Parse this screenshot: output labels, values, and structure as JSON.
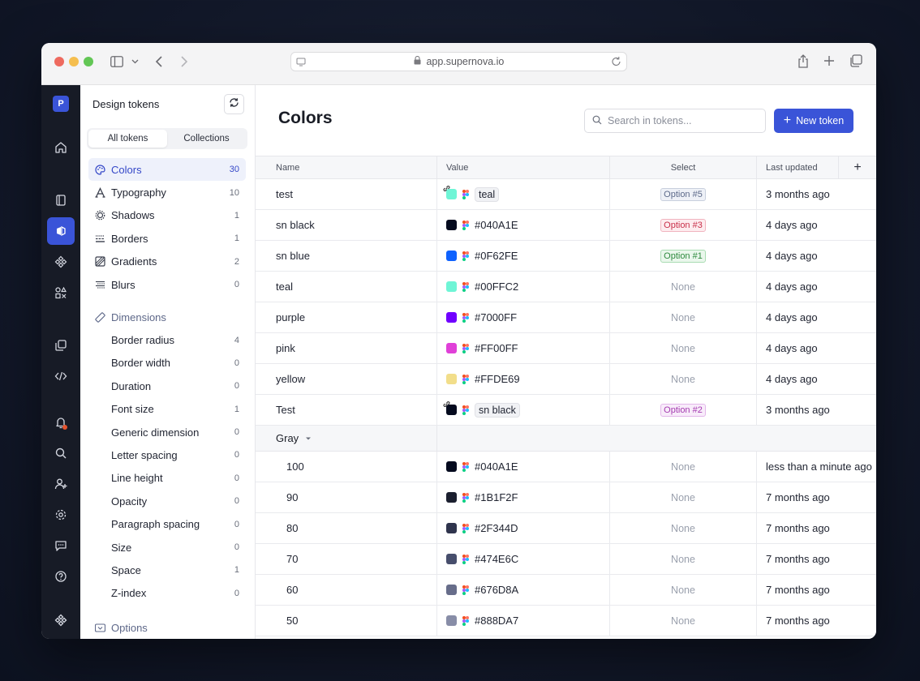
{
  "browser": {
    "url": "app.supernova.io"
  },
  "rail": {
    "logo_letter": "P"
  },
  "sidebar": {
    "title": "Design tokens",
    "tabs": [
      "All tokens",
      "Collections"
    ],
    "items": [
      {
        "label": "Colors",
        "count": "30",
        "icon": "palette-icon",
        "active": true
      },
      {
        "label": "Typography",
        "count": "10",
        "icon": "typography-icon"
      },
      {
        "label": "Shadows",
        "count": "1",
        "icon": "shadow-icon"
      },
      {
        "label": "Borders",
        "count": "1",
        "icon": "border-icon"
      },
      {
        "label": "Gradients",
        "count": "2",
        "icon": "gradient-icon"
      },
      {
        "label": "Blurs",
        "count": "0",
        "icon": "blur-icon"
      }
    ],
    "dimensions_label": "Dimensions",
    "dimension_items": [
      {
        "label": "Border radius",
        "count": "4"
      },
      {
        "label": "Border width",
        "count": "0"
      },
      {
        "label": "Duration",
        "count": "0"
      },
      {
        "label": "Font size",
        "count": "1"
      },
      {
        "label": "Generic dimension",
        "count": "0"
      },
      {
        "label": "Letter spacing",
        "count": "0"
      },
      {
        "label": "Line height",
        "count": "0"
      },
      {
        "label": "Opacity",
        "count": "0"
      },
      {
        "label": "Paragraph spacing",
        "count": "0"
      },
      {
        "label": "Size",
        "count": "0"
      },
      {
        "label": "Space",
        "count": "1"
      },
      {
        "label": "Z-index",
        "count": "0"
      }
    ],
    "options_label": "Options"
  },
  "main": {
    "title": "Colors",
    "search_placeholder": "Search in tokens...",
    "new_token_label": "New token",
    "columns": {
      "name": "Name",
      "value": "Value",
      "select": "Select",
      "updated": "Last updated",
      "add": "+"
    },
    "rows": [
      {
        "name": "test",
        "swatch": "#6FF5D6",
        "value": "teal",
        "ref": true,
        "option": "Option #5",
        "option_color": "#5d6a8a",
        "option_bg": "#eef1f7",
        "option_border": "#c8cfdd",
        "updated": "3 months ago"
      },
      {
        "name": "sn black",
        "swatch": "#040A1E",
        "value": "#040A1E",
        "ref": false,
        "option": "Option #3",
        "option_color": "#c9304a",
        "option_bg": "#fdecef",
        "option_border": "#f1b4bf",
        "updated": "4 days ago"
      },
      {
        "name": "sn blue",
        "swatch": "#0F62FE",
        "value": "#0F62FE",
        "ref": false,
        "option": "Option #1",
        "option_color": "#2e8a3e",
        "option_bg": "#eaf7ec",
        "option_border": "#a9dcb2",
        "updated": "4 days ago"
      },
      {
        "name": "teal",
        "swatch": "#6FF5D6",
        "value": "#00FFC2",
        "ref": false,
        "option": "None",
        "updated": "4 days ago"
      },
      {
        "name": "purple",
        "swatch": "#7000FF",
        "value": "#7000FF",
        "ref": false,
        "option": "None",
        "updated": "4 days ago"
      },
      {
        "name": "pink",
        "swatch": "#E040D8",
        "value": "#FF00FF",
        "ref": false,
        "option": "None",
        "updated": "4 days ago"
      },
      {
        "name": "yellow",
        "swatch": "#F2DE8A",
        "value": "#FFDE69",
        "ref": false,
        "option": "None",
        "updated": "4 days ago"
      },
      {
        "name": "Test",
        "swatch": "#040A1E",
        "value": "sn black",
        "ref": true,
        "option": "Option #2",
        "option_color": "#a43bb0",
        "option_bg": "#f8ecfa",
        "option_border": "#e3b6ea",
        "updated": "3 months ago"
      }
    ],
    "group": {
      "name": "Gray"
    },
    "group_rows": [
      {
        "name": "100",
        "swatch": "#040A1E",
        "value": "#040A1E",
        "option": "None",
        "updated": "less than a minute ago"
      },
      {
        "name": "90",
        "swatch": "#1B1F2F",
        "value": "#1B1F2F",
        "option": "None",
        "updated": "7 months ago"
      },
      {
        "name": "80",
        "swatch": "#2F344D",
        "value": "#2F344D",
        "option": "None",
        "updated": "7 months ago"
      },
      {
        "name": "70",
        "swatch": "#474E6C",
        "value": "#474E6C",
        "option": "None",
        "updated": "7 months ago"
      },
      {
        "name": "60",
        "swatch": "#676D8A",
        "value": "#676D8A",
        "option": "None",
        "updated": "7 months ago"
      },
      {
        "name": "50",
        "swatch": "#888DA7",
        "value": "#888DA7",
        "option": "None",
        "updated": "7 months ago"
      }
    ]
  }
}
